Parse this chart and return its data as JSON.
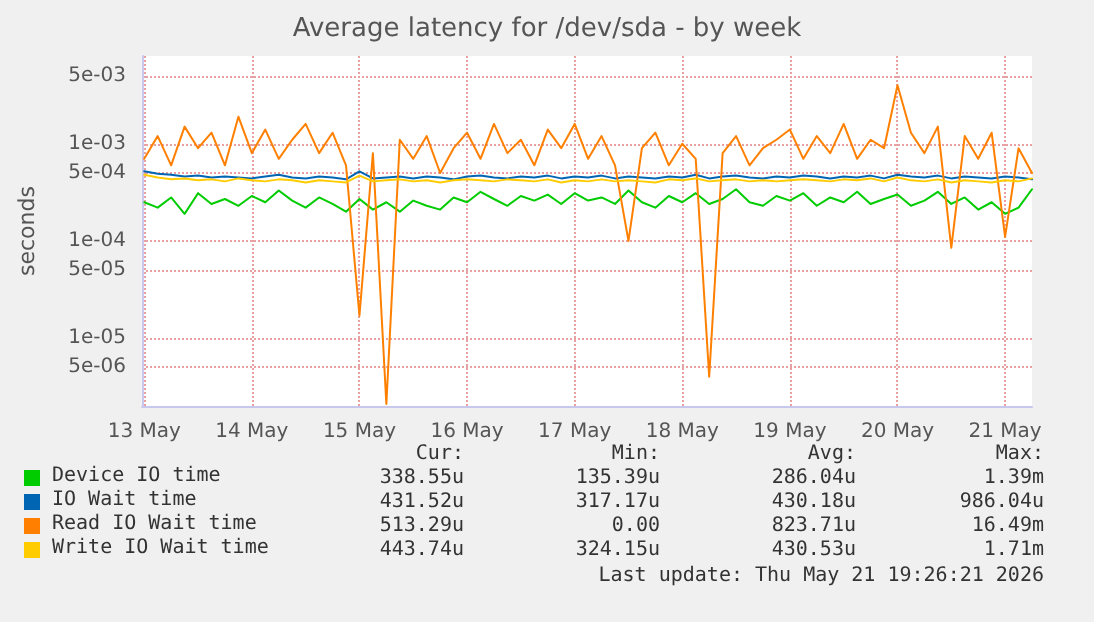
{
  "chart_data": {
    "type": "line",
    "title": "Average latency for /dev/sda - by week",
    "ylabel": "seconds",
    "log": "y",
    "grid": true,
    "legend": "bottom",
    "marker": "none",
    "line_style": "solid",
    "xlim": [
      "2026-05-12T23:30",
      "2026-05-21T06:00"
    ],
    "xticks": [
      {
        "value": "2026-05-13",
        "label": "13 May"
      },
      {
        "value": "2026-05-14",
        "label": "14 May"
      },
      {
        "value": "2026-05-15",
        "label": "15 May"
      },
      {
        "value": "2026-05-16",
        "label": "16 May"
      },
      {
        "value": "2026-05-17",
        "label": "17 May"
      },
      {
        "value": "2026-05-18",
        "label": "18 May"
      },
      {
        "value": "2026-05-19",
        "label": "19 May"
      },
      {
        "value": "2026-05-20",
        "label": "20 May"
      },
      {
        "value": "2026-05-21",
        "label": "21 May"
      }
    ],
    "ylim": [
      2e-06,
      0.008
    ],
    "yticks": [
      {
        "value": 5e-06,
        "label": "5e-06"
      },
      {
        "value": 1e-05,
        "label": "1e-05"
      },
      {
        "value": 5e-05,
        "label": "5e-05"
      },
      {
        "value": 0.0001,
        "label": "1e-04"
      },
      {
        "value": 0.0005,
        "label": "5e-04"
      },
      {
        "value": 0.001,
        "label": "1e-03"
      },
      {
        "value": 0.005,
        "label": "5e-03"
      }
    ],
    "x": [
      "2026-05-13T00:00",
      "2026-05-13T03:00",
      "2026-05-13T06:00",
      "2026-05-13T09:00",
      "2026-05-13T12:00",
      "2026-05-13T15:00",
      "2026-05-13T18:00",
      "2026-05-13T21:00",
      "2026-05-14T00:00",
      "2026-05-14T03:00",
      "2026-05-14T06:00",
      "2026-05-14T09:00",
      "2026-05-14T12:00",
      "2026-05-14T15:00",
      "2026-05-14T18:00",
      "2026-05-14T21:00",
      "2026-05-15T00:00",
      "2026-05-15T03:00",
      "2026-05-15T06:00",
      "2026-05-15T09:00",
      "2026-05-15T12:00",
      "2026-05-15T15:00",
      "2026-05-15T18:00",
      "2026-05-15T21:00",
      "2026-05-16T00:00",
      "2026-05-16T03:00",
      "2026-05-16T06:00",
      "2026-05-16T09:00",
      "2026-05-16T12:00",
      "2026-05-16T15:00",
      "2026-05-16T18:00",
      "2026-05-16T21:00",
      "2026-05-17T00:00",
      "2026-05-17T03:00",
      "2026-05-17T06:00",
      "2026-05-17T09:00",
      "2026-05-17T12:00",
      "2026-05-17T15:00",
      "2026-05-17T18:00",
      "2026-05-17T21:00",
      "2026-05-18T00:00",
      "2026-05-18T03:00",
      "2026-05-18T06:00",
      "2026-05-18T09:00",
      "2026-05-18T12:00",
      "2026-05-18T15:00",
      "2026-05-18T18:00",
      "2026-05-18T21:00",
      "2026-05-19T00:00",
      "2026-05-19T03:00",
      "2026-05-19T06:00",
      "2026-05-19T09:00",
      "2026-05-19T12:00",
      "2026-05-19T15:00",
      "2026-05-19T18:00",
      "2026-05-19T21:00",
      "2026-05-20T00:00",
      "2026-05-20T03:00",
      "2026-05-20T06:00",
      "2026-05-20T09:00",
      "2026-05-20T12:00",
      "2026-05-20T15:00",
      "2026-05-20T18:00",
      "2026-05-20T21:00",
      "2026-05-21T00:00",
      "2026-05-21T03:00",
      "2026-05-21T06:00"
    ],
    "series": [
      {
        "name": "Device IO time",
        "color": "#00cc00",
        "values": [
          0.00025,
          0.00022,
          0.00028,
          0.00019,
          0.00031,
          0.00024,
          0.00027,
          0.00023,
          0.00029,
          0.00025,
          0.00033,
          0.00026,
          0.00022,
          0.00028,
          0.00024,
          0.0002,
          0.00027,
          0.00021,
          0.00025,
          0.0002,
          0.00026,
          0.00023,
          0.00021,
          0.00028,
          0.00025,
          0.00032,
          0.00027,
          0.00023,
          0.00029,
          0.00026,
          0.0003,
          0.00024,
          0.00031,
          0.00026,
          0.00028,
          0.00024,
          0.00033,
          0.00025,
          0.00022,
          0.00029,
          0.00025,
          0.00031,
          0.00024,
          0.00027,
          0.00034,
          0.00025,
          0.00023,
          0.00029,
          0.00026,
          0.00031,
          0.00023,
          0.00028,
          0.00025,
          0.00032,
          0.00024,
          0.00027,
          0.0003,
          0.00023,
          0.00026,
          0.00032,
          0.00024,
          0.00028,
          0.00021,
          0.00025,
          0.00019,
          0.00022,
          0.00034
        ]
      },
      {
        "name": "IO Wait time",
        "color": "#0066b3",
        "values": [
          0.00052,
          0.00049,
          0.00048,
          0.00046,
          0.00047,
          0.00045,
          0.00046,
          0.00045,
          0.00044,
          0.00046,
          0.00048,
          0.00045,
          0.00044,
          0.00046,
          0.00045,
          0.00043,
          0.00052,
          0.00044,
          0.00045,
          0.00046,
          0.00044,
          0.00046,
          0.00045,
          0.00043,
          0.00046,
          0.00047,
          0.00045,
          0.00044,
          0.00046,
          0.00045,
          0.00047,
          0.00044,
          0.00046,
          0.00045,
          0.00047,
          0.00044,
          0.00046,
          0.00045,
          0.00044,
          0.00046,
          0.00045,
          0.00048,
          0.00044,
          0.00046,
          0.00047,
          0.00045,
          0.00044,
          0.00046,
          0.00045,
          0.00047,
          0.00046,
          0.00044,
          0.00046,
          0.00045,
          0.00047,
          0.00044,
          0.00048,
          0.00046,
          0.00045,
          0.00047,
          0.00044,
          0.00046,
          0.00045,
          0.00044,
          0.00046,
          0.00045,
          0.00043
        ]
      },
      {
        "name": "Read IO Wait time",
        "color": "#ff8000",
        "values": [
          0.0007,
          0.0012,
          0.0006,
          0.0015,
          0.0009,
          0.0013,
          0.0006,
          0.0019,
          0.0008,
          0.0014,
          0.0007,
          0.0011,
          0.0016,
          0.0008,
          0.0013,
          0.0006,
          1.7e-05,
          0.0008,
          2.1e-06,
          0.0011,
          0.0007,
          0.0012,
          0.0005,
          0.0009,
          0.0013,
          0.0007,
          0.0016,
          0.0008,
          0.0011,
          0.0006,
          0.0014,
          0.0009,
          0.0016,
          0.0007,
          0.0012,
          0.0006,
          0.0001,
          0.0009,
          0.0013,
          0.0006,
          0.001,
          0.0007,
          4e-06,
          0.0008,
          0.0012,
          0.0006,
          0.0009,
          0.0011,
          0.0014,
          0.0007,
          0.0012,
          0.0008,
          0.0016,
          0.0007,
          0.0011,
          0.0009,
          0.004,
          0.0013,
          0.0008,
          0.0015,
          8.5e-05,
          0.0012,
          0.0007,
          0.0013,
          0.00011,
          0.0009,
          0.0005
        ]
      },
      {
        "name": "Write IO Wait time",
        "color": "#ffcc00",
        "values": [
          0.00048,
          0.00045,
          0.00043,
          0.00044,
          0.00042,
          0.00043,
          0.00041,
          0.00044,
          0.00042,
          0.00041,
          0.00043,
          0.00042,
          0.0004,
          0.00042,
          0.00041,
          0.0004,
          0.00047,
          0.00041,
          0.00042,
          0.00043,
          0.00041,
          0.00042,
          0.0004,
          0.00042,
          0.00043,
          0.00042,
          0.00041,
          0.00043,
          0.00042,
          0.00041,
          0.00043,
          0.0004,
          0.00042,
          0.00041,
          0.00043,
          0.00041,
          0.00042,
          0.00041,
          0.0004,
          0.00043,
          0.00042,
          0.00044,
          0.00041,
          0.00042,
          0.00043,
          0.00041,
          0.00042,
          0.00041,
          0.00042,
          0.00043,
          0.00042,
          0.00041,
          0.00043,
          0.00042,
          0.00044,
          0.00041,
          0.00045,
          0.00042,
          0.00041,
          0.00043,
          0.0004,
          0.00042,
          0.00041,
          0.0004,
          0.00042,
          0.00041,
          0.00044
        ]
      }
    ],
    "annotations": [
      "Cur:",
      "Min:",
      "Avg:",
      "Max:",
      "338.55u",
      "135.39u",
      "286.04u",
      "1.39m",
      "431.52u",
      "317.17u",
      "430.18u",
      "986.04u",
      "513.29u",
      "0.00",
      "823.71u",
      "16.49m",
      "443.74u",
      "324.15u",
      "430.53u",
      "1.71m",
      "Last update: Thu May 21 19:26:21 2026"
    ]
  }
}
